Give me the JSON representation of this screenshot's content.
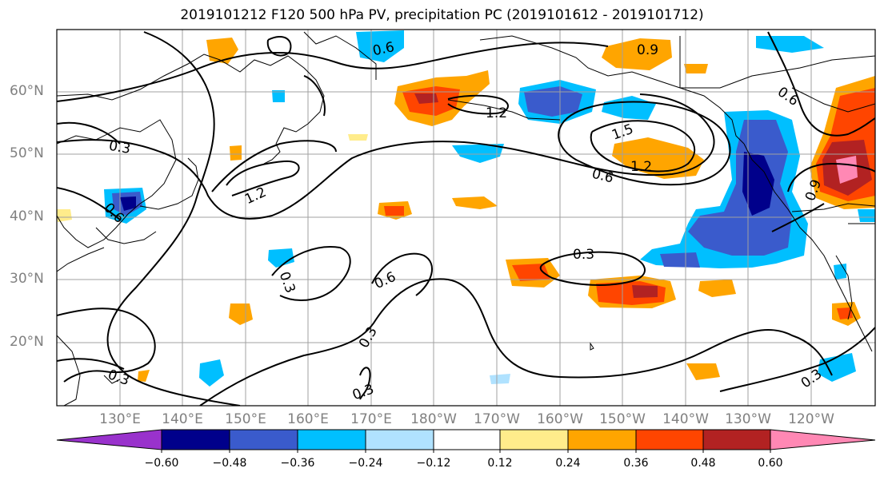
{
  "title": "2019101212 F120 500 hPa PV, precipitation PC (2019101612 - 2019101712)",
  "lat_labels": [
    "60°N",
    "50°N",
    "40°N",
    "30°N",
    "20°N"
  ],
  "lon_labels": [
    "130°E",
    "140°E",
    "150°E",
    "160°E",
    "170°E",
    "180°W",
    "170°W",
    "160°W",
    "150°W",
    "140°W",
    "130°W",
    "120°W"
  ],
  "contour_labels": [
    "0.6",
    "0.9",
    "1.2",
    "1.5",
    "1.2",
    "0.6",
    "0.3",
    "1.2",
    "0.6",
    "0.9",
    "0.6",
    "0.3",
    "0.6",
    "0.3",
    "0.3",
    "0.3",
    "0.3",
    "0.3"
  ],
  "colorbar": {
    "ticks": [
      "−0.60",
      "−0.48",
      "−0.36",
      "−0.24",
      "−0.12",
      "0.12",
      "0.24",
      "0.36",
      "0.48",
      "0.60"
    ],
    "colors": [
      "#9932cc",
      "#00008b",
      "#3a5bcc",
      "#00bfff",
      "#b0e2ff",
      "#ffffff",
      "#ffec8b",
      "#ffa500",
      "#ff4500",
      "#b22222",
      "#ff88b4"
    ]
  },
  "colors": {
    "grid": "#a0a0a0",
    "coast": "#000000",
    "contour": "#000000",
    "tick_label": "#808080"
  }
}
